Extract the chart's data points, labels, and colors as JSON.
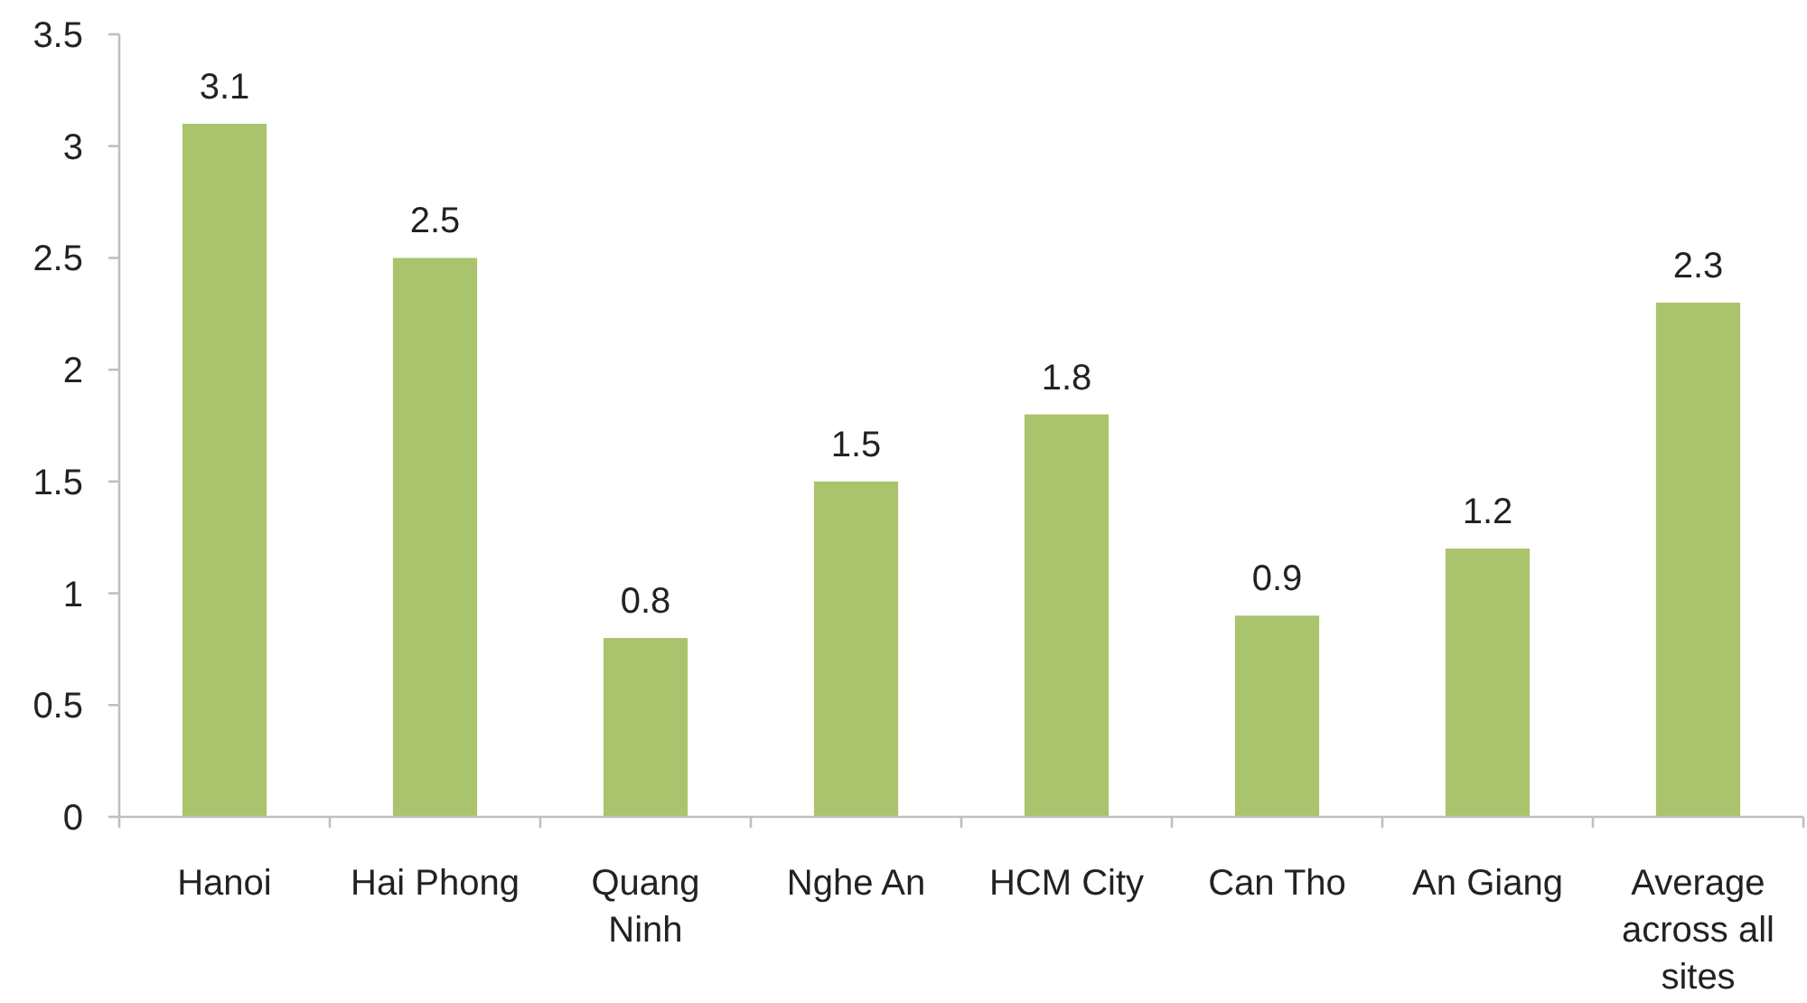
{
  "chart_data": {
    "type": "bar",
    "categories": [
      "Hanoi",
      "Hai Phong",
      "Quang Ninh",
      "Nghe An",
      "HCM City",
      "Can Tho",
      "An Giang",
      "Average across all sites"
    ],
    "values": [
      3.1,
      2.5,
      0.8,
      1.5,
      1.8,
      0.9,
      1.2,
      2.3
    ],
    "color": "#a9c46c",
    "ylim": [
      0,
      3.5
    ],
    "yticks": [
      0,
      0.5,
      1,
      1.5,
      2,
      2.5,
      3,
      3.5
    ],
    "grid": false,
    "data_labels": true
  }
}
